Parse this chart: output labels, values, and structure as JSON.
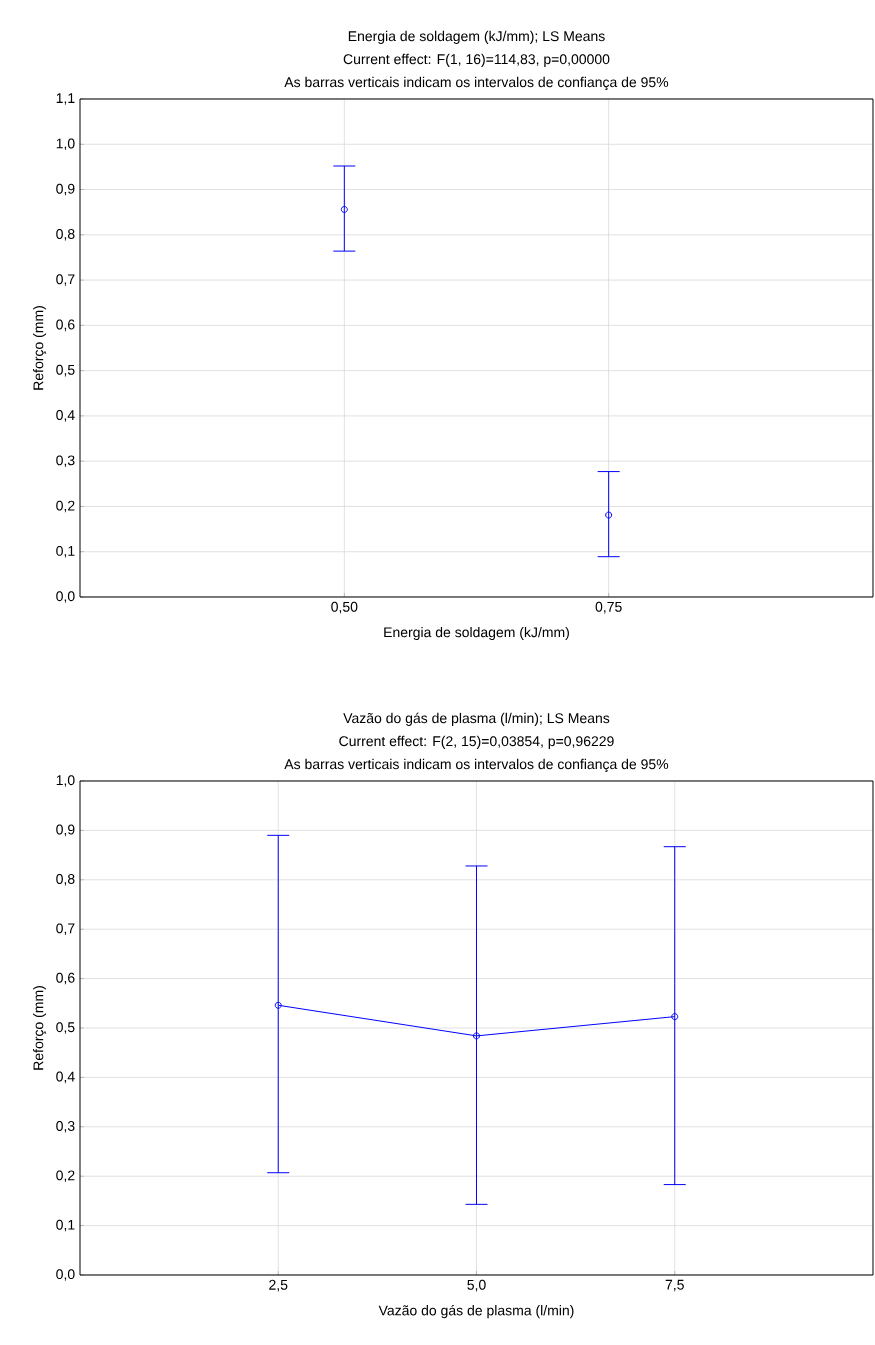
{
  "chart_data": [
    {
      "type": "scatter",
      "title": "Energia de soldagem (kJ/mm); LS Means",
      "subtitle": "Current effect: F(1, 16)=114,83, p=0,00000",
      "annotations": [
        "As barras verticais indicam os intervalos de confiança de 95%"
      ],
      "xlabel": "Energia de soldagem (kJ/mm)",
      "ylabel": "Reforço (mm)",
      "categories": [
        "0,50",
        "0,75"
      ],
      "series": [
        {
          "color": "#0000ff",
          "values": [
            0.856,
            0.181
          ],
          "errors": [
            [
              0.764,
              0.952
            ],
            [
              0.089,
              0.277
            ]
          ]
        }
      ],
      "marker": "circle",
      "grid": true,
      "ylim": [
        0,
        1.1
      ],
      "yticks": [
        {
          "value": 0,
          "label": "0,0"
        },
        {
          "value": 0.1,
          "label": "0,1"
        },
        {
          "value": 0.2,
          "label": "0,2"
        },
        {
          "value": 0.3,
          "label": "0,3"
        },
        {
          "value": 0.4,
          "label": "0,4"
        },
        {
          "value": 0.5,
          "label": "0,5"
        },
        {
          "value": 0.6,
          "label": "0,6"
        },
        {
          "value": 0.7,
          "label": "0,7"
        },
        {
          "value": 0.8,
          "label": "0,8"
        },
        {
          "value": 0.9,
          "label": "0,9"
        },
        {
          "value": 1.0,
          "label": "1,0"
        },
        {
          "value": 1.1,
          "label": "1,1"
        }
      ]
    },
    {
      "type": "line",
      "title": "Vazão do gás de plasma (l/min); LS Means",
      "subtitle": "Current effect: F(2, 15)=0,03854, p=0,96229",
      "annotations": [
        "As barras verticais indicam os intervalos de confiança de 95%"
      ],
      "xlabel": "Vazão do gás de plasma (l/min)",
      "ylabel": "Reforço (mm)",
      "categories": [
        "2,5",
        "5,0",
        "7,5"
      ],
      "series": [
        {
          "color": "#0000ff",
          "values": [
            0.546,
            0.484,
            0.523
          ],
          "errors": [
            [
              0.207,
              0.89
            ],
            [
              0.143,
              0.828
            ],
            [
              0.183,
              0.867
            ]
          ]
        }
      ],
      "marker": "circle",
      "grid": true,
      "ylim": [
        0,
        1.0
      ],
      "yticks": [
        {
          "value": 0,
          "label": "0,0"
        },
        {
          "value": 0.1,
          "label": "0,1"
        },
        {
          "value": 0.2,
          "label": "0,2"
        },
        {
          "value": 0.3,
          "label": "0,3"
        },
        {
          "value": 0.4,
          "label": "0,4"
        },
        {
          "value": 0.5,
          "label": "0,5"
        },
        {
          "value": 0.6,
          "label": "0,6"
        },
        {
          "value": 0.7,
          "label": "0,7"
        },
        {
          "value": 0.8,
          "label": "0,8"
        },
        {
          "value": 0.9,
          "label": "0,9"
        },
        {
          "value": 1.0,
          "label": "1,0"
        }
      ]
    }
  ]
}
